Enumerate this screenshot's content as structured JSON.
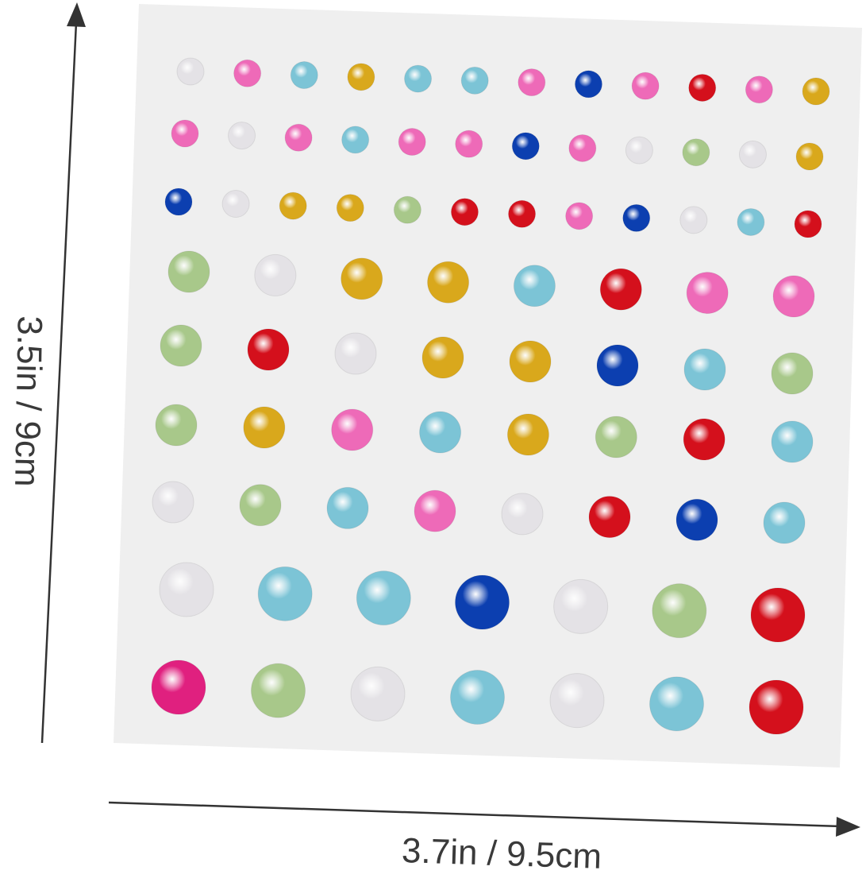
{
  "dimensions": {
    "height_label": "3.5in / 9cm",
    "width_label": "3.7in / 9.5cm"
  },
  "colors": {
    "white": "#e4e2e6",
    "pink": "#ee6ab8",
    "magenta": "#e0207f",
    "lightblue": "#7cc4d6",
    "yellow": "#d9a81c",
    "blue": "#0c3fb0",
    "red": "#d4101c",
    "green": "#a8c88a",
    "sheet": "#efefef"
  },
  "pearl_rows": [
    {
      "size": "small",
      "colors": [
        "white",
        "pink",
        "lightblue",
        "yellow",
        "lightblue",
        "lightblue",
        "pink",
        "blue",
        "pink",
        "red",
        "pink",
        "yellow"
      ]
    },
    {
      "size": "small",
      "colors": [
        "pink",
        "white",
        "pink",
        "lightblue",
        "pink",
        "pink",
        "blue",
        "pink",
        "white",
        "green",
        "white",
        "yellow"
      ]
    },
    {
      "size": "small",
      "colors": [
        "blue",
        "white",
        "yellow",
        "yellow",
        "green",
        "red",
        "red",
        "pink",
        "blue",
        "white",
        "lightblue",
        "red"
      ]
    },
    {
      "size": "medium",
      "colors": [
        "green",
        "white",
        "yellow",
        "yellow",
        "lightblue",
        "red",
        "pink",
        "pink"
      ]
    },
    {
      "size": "medium",
      "colors": [
        "green",
        "red",
        "white",
        "yellow",
        "yellow",
        "blue",
        "lightblue",
        "green"
      ]
    },
    {
      "size": "medium",
      "colors": [
        "green",
        "yellow",
        "pink",
        "lightblue",
        "yellow",
        "green",
        "red",
        "lightblue"
      ]
    },
    {
      "size": "medium",
      "colors": [
        "white",
        "green",
        "lightblue",
        "pink",
        "white",
        "red",
        "blue",
        "lightblue"
      ]
    },
    {
      "size": "large",
      "colors": [
        "white",
        "lightblue",
        "lightblue",
        "blue",
        "white",
        "green",
        "red"
      ]
    },
    {
      "size": "large",
      "colors": [
        "magenta",
        "green",
        "white",
        "lightblue",
        "white",
        "lightblue",
        "red"
      ]
    }
  ]
}
